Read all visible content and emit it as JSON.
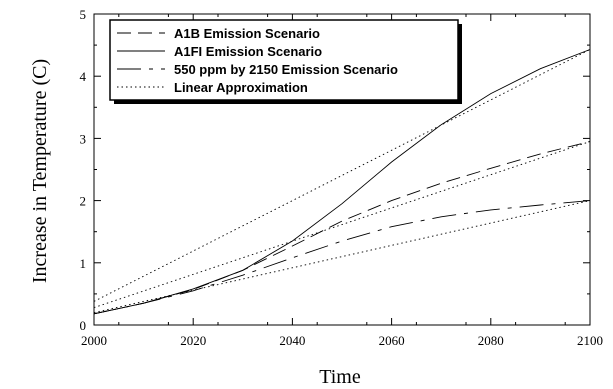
{
  "chart_data": {
    "type": "line",
    "title": "",
    "xlabel": "Time",
    "ylabel": "Increase in Temperature (C)",
    "xlim": [
      2000,
      2100
    ],
    "ylim": [
      0,
      5
    ],
    "xticks": [
      2000,
      2020,
      2040,
      2060,
      2080,
      2100
    ],
    "yticks": [
      0,
      1,
      2,
      3,
      4,
      5
    ],
    "grid": false,
    "legend_position": "top-left",
    "series": [
      {
        "name": "A1B Emission Scenario",
        "style": "dashed",
        "color": "#000000",
        "x": [
          2000,
          2010,
          2020,
          2030,
          2040,
          2050,
          2060,
          2070,
          2080,
          2090,
          2100
        ],
        "y": [
          0.18,
          0.35,
          0.57,
          0.88,
          1.27,
          1.67,
          2.0,
          2.28,
          2.52,
          2.75,
          2.95
        ]
      },
      {
        "name": "A1FI  Emission Scenario",
        "style": "solid",
        "color": "#000000",
        "x": [
          2000,
          2010,
          2020,
          2030,
          2040,
          2050,
          2060,
          2070,
          2080,
          2090,
          2100
        ],
        "y": [
          0.18,
          0.35,
          0.58,
          0.88,
          1.35,
          1.95,
          2.62,
          3.22,
          3.72,
          4.12,
          4.43
        ]
      },
      {
        "name": "550 ppm by 2150 Emission Scenario",
        "style": "long-dash",
        "color": "#000000",
        "x": [
          2000,
          2010,
          2020,
          2030,
          2040,
          2050,
          2060,
          2070,
          2080,
          2090,
          2100
        ],
        "y": [
          0.18,
          0.35,
          0.55,
          0.8,
          1.08,
          1.35,
          1.58,
          1.74,
          1.85,
          1.93,
          2.0
        ]
      },
      {
        "name": "Linear Approximation",
        "style": "dotted",
        "color": "#000000",
        "segments": [
          {
            "x": [
              2000,
              2100
            ],
            "y": [
              0.38,
              4.43
            ]
          },
          {
            "x": [
              2000,
              2100
            ],
            "y": [
              0.28,
              2.95
            ]
          },
          {
            "x": [
              2000,
              2100
            ],
            "y": [
              0.2,
              2.0
            ]
          }
        ]
      }
    ],
    "legend_entries": [
      "A1B Emission Scenario",
      "A1FI  Emission Scenario",
      "550 ppm by 2150 Emission Scenario",
      "Linear Approximation"
    ]
  }
}
